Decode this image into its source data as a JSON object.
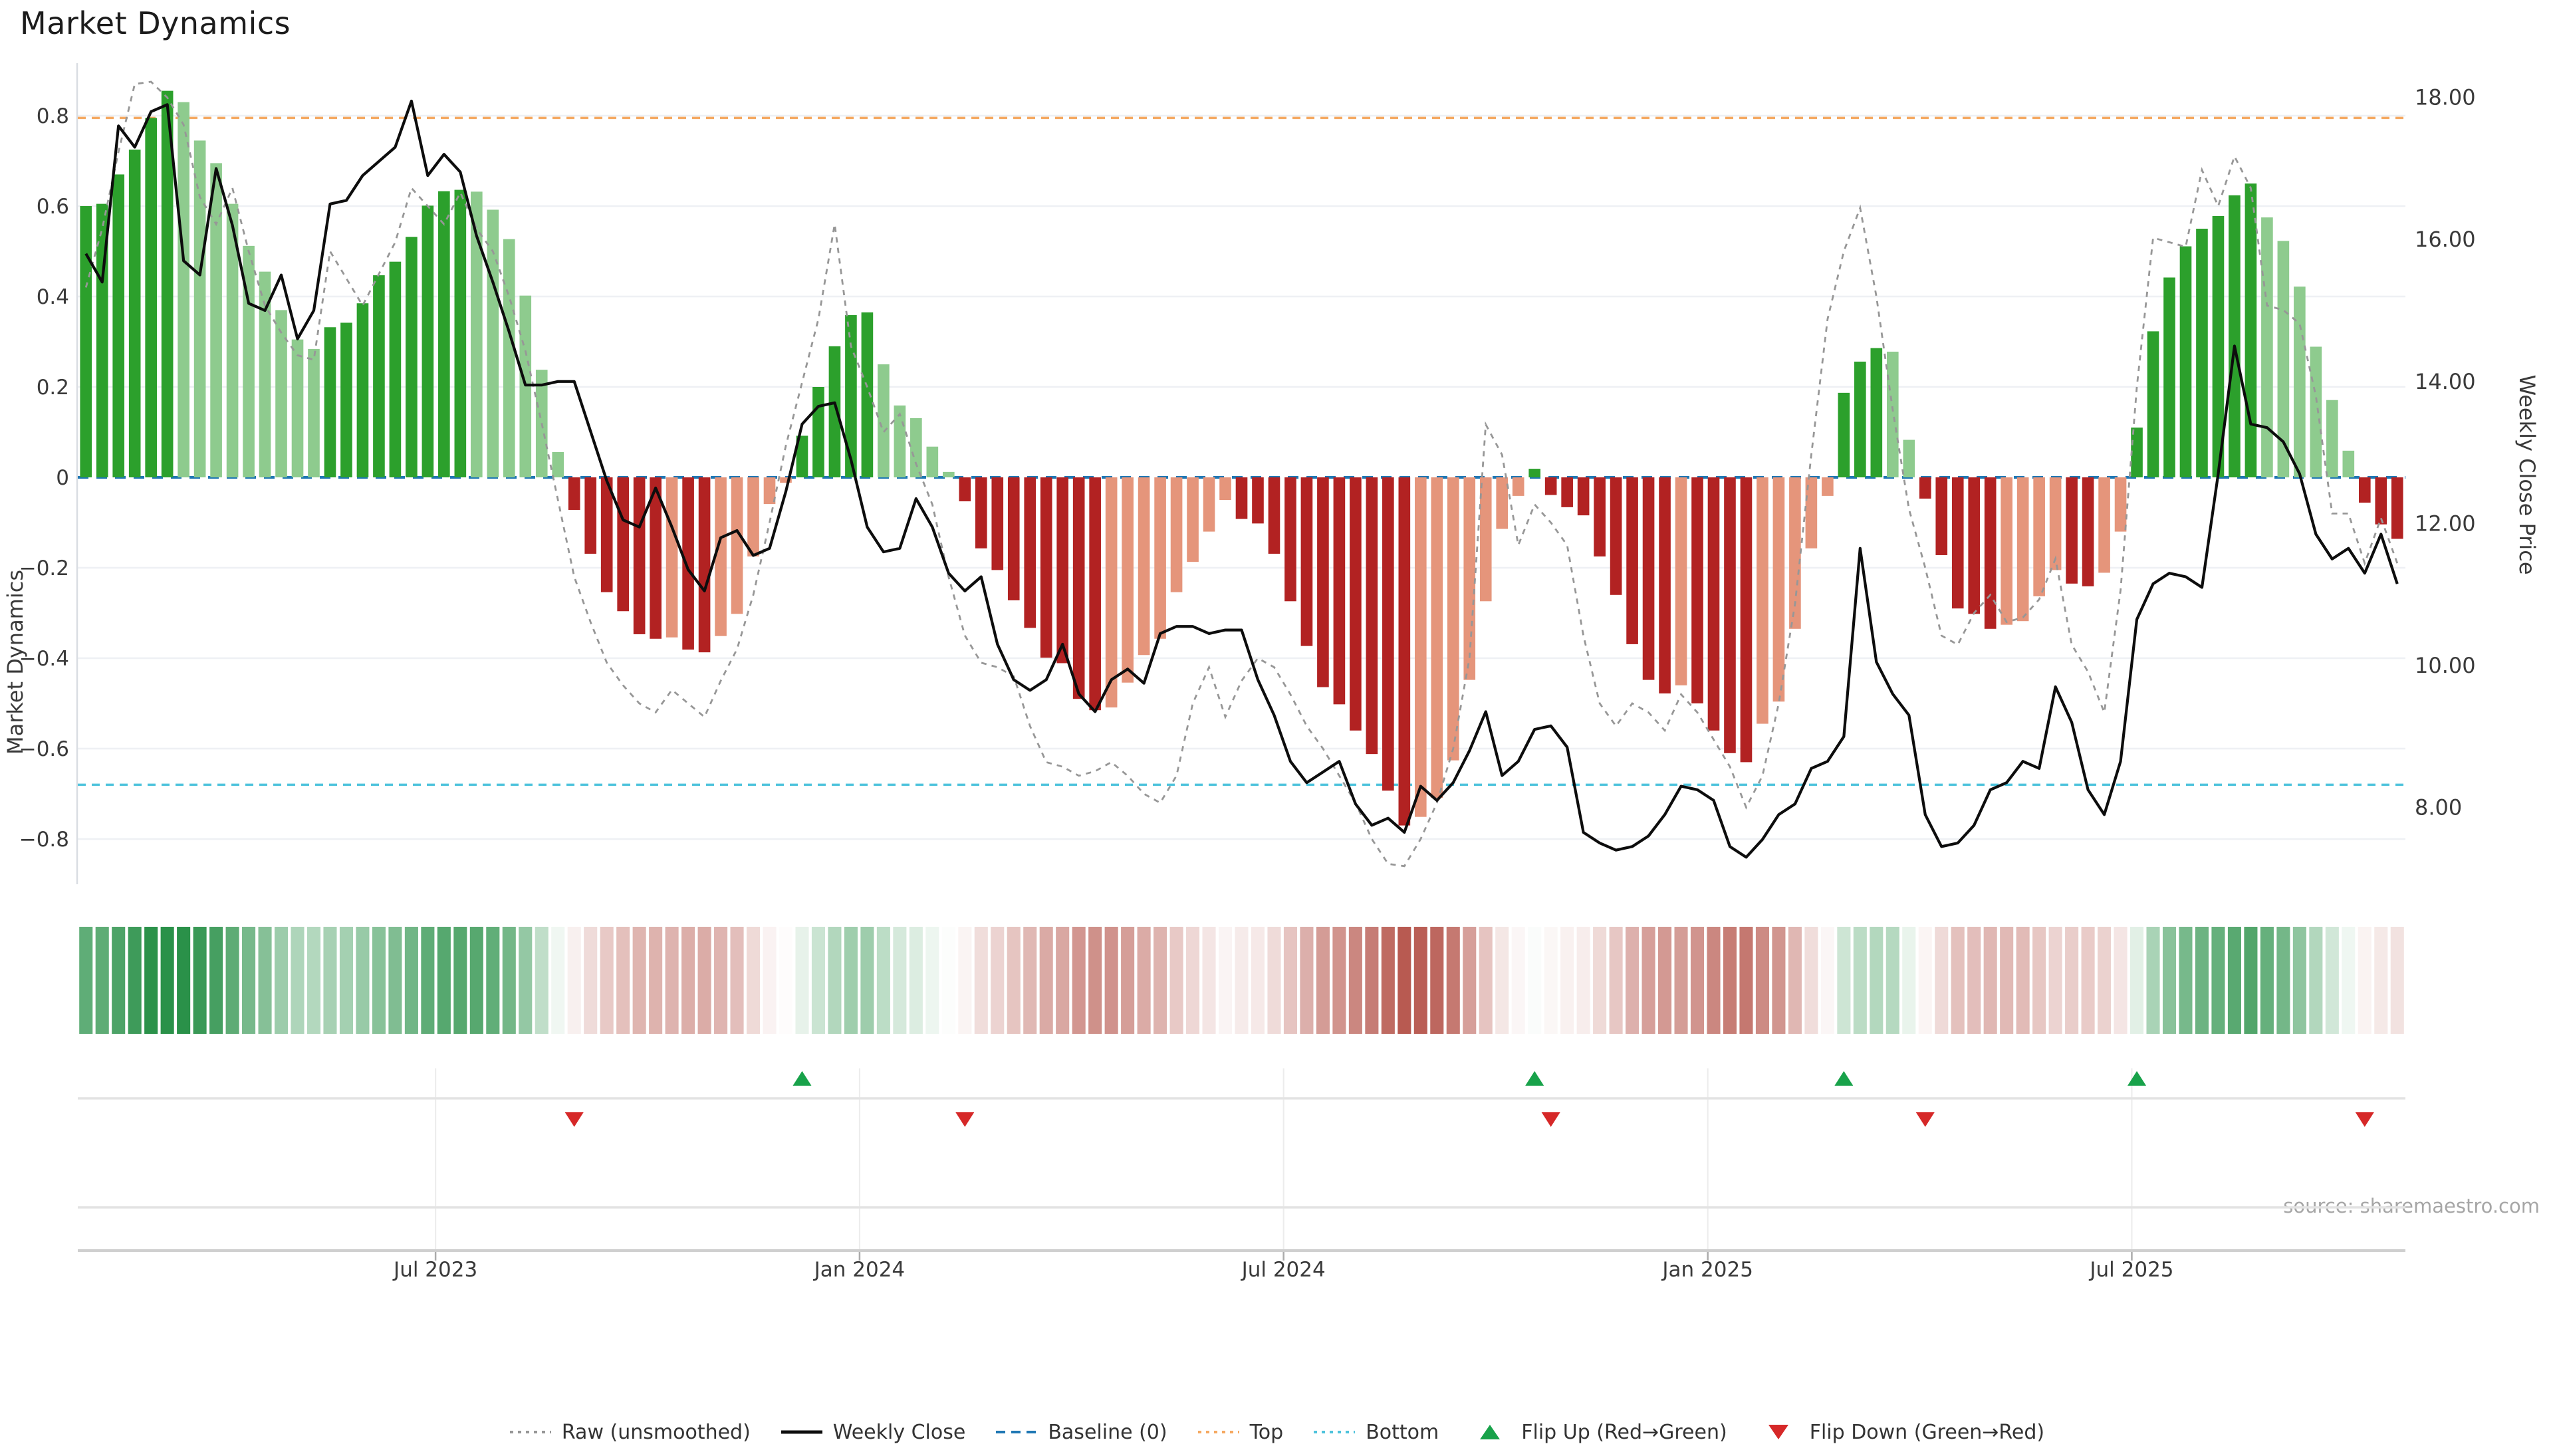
{
  "title": "Market Dynamics",
  "source": "source: sharemaestro.com",
  "axis_left": {
    "label": "Market Dynamics",
    "tick_labels": [
      "0.8",
      "0.6",
      "0.4",
      "0.2",
      "0",
      "−0.2",
      "−0.4",
      "−0.6",
      "−0.8"
    ],
    "tick_values": [
      0.8,
      0.6,
      0.4,
      0.2,
      0,
      -0.2,
      -0.4,
      -0.6,
      -0.8
    ]
  },
  "axis_right": {
    "label": "Weekly Close Price",
    "tick_labels": [
      "18.00",
      "16.00",
      "14.00",
      "12.00",
      "10.00",
      "8.00"
    ],
    "tick_values": [
      18,
      16,
      14,
      12,
      10,
      8
    ]
  },
  "axis_x": {
    "ticks": [
      {
        "label": "Jul 2023",
        "pos": 21.48
      },
      {
        "label": "Jan 2024",
        "pos": 47.53
      },
      {
        "label": "Jul 2024",
        "pos": 73.58
      },
      {
        "label": "Jan 2025",
        "pos": 99.64
      },
      {
        "label": "Jul 2025",
        "pos": 125.69
      }
    ]
  },
  "legend": [
    {
      "label": "Raw (unsmoothed)",
      "marker": "dotted-line",
      "color": "#979797"
    },
    {
      "label": "Weekly Close",
      "marker": "solid-line",
      "color": "#0d0d0d"
    },
    {
      "label": "Baseline (0)",
      "marker": "dashed-line",
      "color": "#1f77b4"
    },
    {
      "label": "Top",
      "marker": "dotted-line",
      "color": "#f5a962"
    },
    {
      "label": "Bottom",
      "marker": "dotted-line",
      "color": "#4fc3dc"
    },
    {
      "label": "Flip Up (Red→Green)",
      "marker": "triangle-up",
      "color": "#18a24a"
    },
    {
      "label": "Flip Down (Green→Red)",
      "marker": "triangle-down",
      "color": "#d62828"
    }
  ],
  "colors": {
    "bar_green_strong": "#2ca02c",
    "bar_green_light": "#8ecb8e",
    "bar_red_strong": "#b22222",
    "bar_red_light": "#e5957b",
    "raw_line": "#979797",
    "close_line": "#0d0d0d",
    "baseline": "#1f77b4",
    "top_line": "#f5a962",
    "bottom_line": "#4fc3dc",
    "flip_up": "#18a24a",
    "flip_down": "#d62828",
    "grid": "#eef0f4",
    "spine": "#d9dde2",
    "panel_line": "#e3e3e3",
    "panel_axis": "#cfcfcf",
    "tick_text": "#3a3a3a",
    "heat_green": "#2a9149",
    "heat_red": "#b5544a"
  },
  "chart_data": {
    "type": "bar",
    "subtype": "oscillator-bars + weekly-close line + raw dotted line + flip markers + heatmap strip",
    "title": "Market Dynamics",
    "xlabel": "",
    "ylabel_left": "Market Dynamics",
    "ylabel_right": "Weekly Close Price",
    "n": 143,
    "x_unit": "week index (weekly bars, ~Feb 2023 → Oct 2025)",
    "ylim_left": [
      -0.95,
      0.95
    ],
    "ylim_right": [
      6.8,
      18.6
    ],
    "baseline": 0,
    "top_threshold": 0.795,
    "bottom_threshold": -0.68,
    "grid": "horizontal only",
    "legend_position": "bottom center",
    "oscillator_values": [
      0.6,
      0.605,
      0.67,
      0.725,
      0.795,
      0.855,
      0.83,
      0.745,
      0.695,
      0.605,
      0.512,
      0.455,
      0.37,
      0.305,
      0.284,
      0.332,
      0.342,
      0.385,
      0.447,
      0.477,
      0.532,
      0.601,
      0.633,
      0.636,
      0.632,
      0.592,
      0.527,
      0.402,
      0.238,
      0.056,
      -0.072,
      -0.169,
      -0.254,
      -0.296,
      -0.347,
      -0.357,
      -0.354,
      -0.381,
      -0.387,
      -0.351,
      -0.302,
      -0.175,
      -0.059,
      -0.012,
      0.092,
      0.2,
      0.29,
      0.359,
      0.365,
      0.25,
      0.159,
      0.131,
      0.068,
      0.012,
      -0.053,
      -0.157,
      -0.205,
      -0.272,
      -0.333,
      -0.399,
      -0.411,
      -0.49,
      -0.515,
      -0.509,
      -0.454,
      -0.393,
      -0.357,
      -0.254,
      -0.187,
      -0.12,
      -0.05,
      -0.092,
      -0.102,
      -0.169,
      -0.274,
      -0.373,
      -0.464,
      -0.502,
      -0.56,
      -0.612,
      -0.693,
      -0.77,
      -0.751,
      -0.709,
      -0.626,
      -0.448,
      -0.274,
      -0.114,
      -0.041,
      0.019,
      -0.039,
      -0.066,
      -0.084,
      -0.175,
      -0.26,
      -0.369,
      -0.448,
      -0.478,
      -0.46,
      -0.5,
      -0.56,
      -0.61,
      -0.63,
      -0.545,
      -0.496,
      -0.335,
      -0.157,
      -0.041,
      0.187,
      0.256,
      0.286,
      0.278,
      0.083,
      -0.047,
      -0.172,
      -0.29,
      -0.302,
      -0.335,
      -0.326,
      -0.318,
      -0.263,
      -0.205,
      -0.235,
      -0.241,
      -0.211,
      -0.12,
      0.11,
      0.323,
      0.442,
      0.511,
      0.55,
      0.578,
      0.624,
      0.65,
      0.575,
      0.523,
      0.422,
      0.289,
      0.171,
      0.059,
      -0.056,
      -0.104,
      -0.136
    ],
    "bar_shades": "DDDDDDgggggggggDDDDDDDDDggggggRRRRRRsRRsssssDDDDDgggggRRRRRRRRRssssssssRRRRRRRRRRRsssssssDRRRRRRRRsRRRRsssssDDDggRRRRRssssRRssDDDDDDDDggggggRRR",
    "weekly_close": [
      15.8,
      15.4,
      17.6,
      17.3,
      17.8,
      17.9,
      15.7,
      15.5,
      17.0,
      16.2,
      15.1,
      15.0,
      15.5,
      14.6,
      15.0,
      16.5,
      16.55,
      16.9,
      17.1,
      17.3,
      17.95,
      16.9,
      17.2,
      16.95,
      16.05,
      15.4,
      14.7,
      13.95,
      13.95,
      14.0,
      14.0,
      13.3,
      12.6,
      12.05,
      11.95,
      12.5,
      11.95,
      11.35,
      11.05,
      11.8,
      11.9,
      11.55,
      11.65,
      12.45,
      13.4,
      13.65,
      13.7,
      12.9,
      11.95,
      11.6,
      11.65,
      12.35,
      11.95,
      11.3,
      11.05,
      11.25,
      10.3,
      9.8,
      9.65,
      9.8,
      10.3,
      9.6,
      9.35,
      9.8,
      9.95,
      9.75,
      10.45,
      10.55,
      10.55,
      10.45,
      10.5,
      10.5,
      9.8,
      9.3,
      8.65,
      8.35,
      8.5,
      8.65,
      8.05,
      7.75,
      7.85,
      7.65,
      8.3,
      8.1,
      8.35,
      8.8,
      9.35,
      8.45,
      8.65,
      9.1,
      9.15,
      8.85,
      7.65,
      7.5,
      7.4,
      7.45,
      7.6,
      7.9,
      8.3,
      8.25,
      8.1,
      7.45,
      7.3,
      7.55,
      7.9,
      8.05,
      8.55,
      8.65,
      9.0,
      11.65,
      10.05,
      9.6,
      9.3,
      7.9,
      7.45,
      7.5,
      7.75,
      8.25,
      8.35,
      8.65,
      8.55,
      9.7,
      9.2,
      8.25,
      7.9,
      8.65,
      10.65,
      11.15,
      11.3,
      11.25,
      11.1,
      12.7,
      14.5,
      13.4,
      13.35,
      13.15,
      12.7,
      11.85,
      11.5,
      11.65,
      11.3,
      11.85,
      11.15
    ],
    "raw_unsmoothed": [
      0.42,
      0.55,
      0.72,
      0.87,
      0.875,
      0.84,
      0.78,
      0.62,
      0.56,
      0.64,
      0.5,
      0.38,
      0.32,
      0.27,
      0.26,
      0.5,
      0.44,
      0.38,
      0.45,
      0.52,
      0.64,
      0.6,
      0.56,
      0.63,
      0.55,
      0.5,
      0.4,
      0.28,
      0.12,
      -0.05,
      -0.22,
      -0.32,
      -0.41,
      -0.46,
      -0.5,
      -0.52,
      -0.47,
      -0.5,
      -0.53,
      -0.45,
      -0.38,
      -0.26,
      -0.1,
      0.07,
      0.21,
      0.35,
      0.56,
      0.29,
      0.2,
      0.1,
      0.14,
      0.03,
      -0.06,
      -0.22,
      -0.35,
      -0.41,
      -0.42,
      -0.44,
      -0.55,
      -0.63,
      -0.64,
      -0.66,
      -0.65,
      -0.63,
      -0.66,
      -0.7,
      -0.72,
      -0.66,
      -0.5,
      -0.42,
      -0.53,
      -0.45,
      -0.4,
      -0.42,
      -0.48,
      -0.55,
      -0.6,
      -0.66,
      -0.72,
      -0.8,
      -0.855,
      -0.86,
      -0.8,
      -0.72,
      -0.6,
      -0.4,
      0.117,
      0.05,
      -0.15,
      -0.06,
      -0.1,
      -0.15,
      -0.35,
      -0.5,
      -0.55,
      -0.5,
      -0.52,
      -0.56,
      -0.48,
      -0.52,
      -0.58,
      -0.64,
      -0.73,
      -0.66,
      -0.5,
      -0.28,
      0.05,
      0.35,
      0.5,
      0.596,
      0.4,
      0.15,
      -0.07,
      -0.2,
      -0.35,
      -0.37,
      -0.3,
      -0.26,
      -0.32,
      -0.31,
      -0.27,
      -0.18,
      -0.37,
      -0.43,
      -0.52,
      -0.25,
      0.2,
      0.53,
      0.52,
      0.51,
      0.68,
      0.6,
      0.71,
      0.64,
      0.38,
      0.37,
      0.34,
      0.18,
      -0.08,
      -0.08,
      -0.19,
      -0.09,
      -0.19
    ],
    "flip_up_indices": [
      44,
      89,
      108,
      126
    ],
    "flip_down_indices": [
      30,
      54,
      90,
      113,
      140
    ],
    "heatmap": "same oscillator values rendered as green/red intensity strip below chart"
  }
}
